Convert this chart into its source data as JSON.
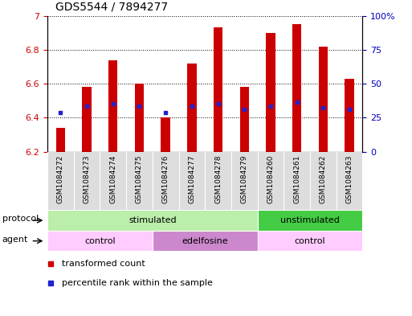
{
  "title": "GDS5544 / 7894277",
  "samples": [
    "GSM1084272",
    "GSM1084273",
    "GSM1084274",
    "GSM1084275",
    "GSM1084276",
    "GSM1084277",
    "GSM1084278",
    "GSM1084279",
    "GSM1084260",
    "GSM1084261",
    "GSM1084262",
    "GSM1084263"
  ],
  "bar_tops": [
    6.34,
    6.58,
    6.74,
    6.6,
    6.4,
    6.72,
    6.93,
    6.58,
    6.9,
    6.95,
    6.82,
    6.63
  ],
  "bar_bottoms": [
    6.2,
    6.2,
    6.2,
    6.2,
    6.2,
    6.2,
    6.2,
    6.2,
    6.2,
    6.2,
    6.2,
    6.2
  ],
  "blue_dots": [
    6.43,
    6.47,
    6.48,
    6.47,
    6.43,
    6.47,
    6.48,
    6.45,
    6.47,
    6.49,
    6.46,
    6.45
  ],
  "bar_color": "#cc0000",
  "blue_dot_color": "#2222cc",
  "ylim_left": [
    6.2,
    7.0
  ],
  "ylim_right": [
    0,
    100
  ],
  "yticks_left": [
    6.2,
    6.4,
    6.6,
    6.8,
    7.0
  ],
  "ytick_labels_left": [
    "6.2",
    "6.4",
    "6.6",
    "6.8",
    "7"
  ],
  "yticks_right": [
    0,
    25,
    50,
    75,
    100
  ],
  "ytick_labels_right": [
    "0",
    "25",
    "50",
    "75",
    "100%"
  ],
  "protocol_row": [
    {
      "label": "stimulated",
      "start": 0,
      "end": 8,
      "color": "#bbeeaa"
    },
    {
      "label": "unstimulated",
      "start": 8,
      "end": 12,
      "color": "#44cc44"
    }
  ],
  "agent_row": [
    {
      "label": "control",
      "start": 0,
      "end": 4,
      "color": "#ffccff"
    },
    {
      "label": "edelfosine",
      "start": 4,
      "end": 8,
      "color": "#cc88cc"
    },
    {
      "label": "control",
      "start": 8,
      "end": 12,
      "color": "#ffccff"
    }
  ],
  "protocol_label": "protocol",
  "agent_label": "agent",
  "legend_items": [
    {
      "label": "transformed count",
      "color": "#cc0000"
    },
    {
      "label": "percentile rank within the sample",
      "color": "#2222cc"
    }
  ],
  "bar_width": 0.35
}
